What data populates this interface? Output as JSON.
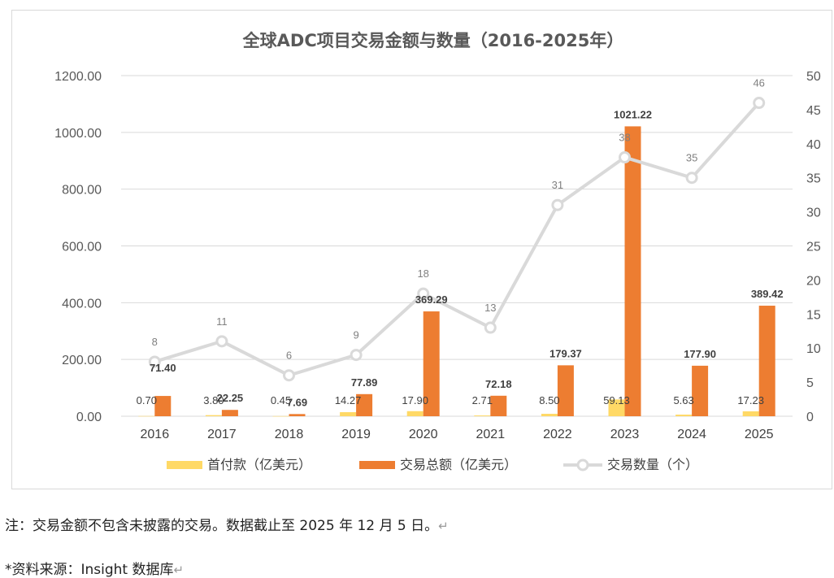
{
  "chart_data": {
    "type": "bar",
    "title": "全球ADC项目交易金额与数量（2016-2025年）",
    "categories": [
      "2016",
      "2017",
      "2018",
      "2019",
      "2020",
      "2021",
      "2022",
      "2023",
      "2024",
      "2025"
    ],
    "y_left": {
      "ticks": [
        "0.00",
        "200.00",
        "400.00",
        "600.00",
        "800.00",
        "1000.00",
        "1200.00"
      ],
      "min": 0,
      "max": 1200
    },
    "y_right": {
      "ticks": [
        "0",
        "5",
        "10",
        "15",
        "20",
        "25",
        "30",
        "35",
        "40",
        "45",
        "50"
      ],
      "min": 0,
      "max": 50
    },
    "grid": true,
    "legend_position": "bottom",
    "series": [
      {
        "name": "首付款（亿美元）",
        "type": "bar",
        "axis": "left",
        "color": "#FFD966",
        "values": [
          0.7,
          3.8,
          0.45,
          14.27,
          17.9,
          2.71,
          8.5,
          59.13,
          5.63,
          17.23
        ],
        "labels": [
          "0.70",
          "3.80",
          "0.45",
          "14.27",
          "17.90",
          "2.71",
          "8.50",
          "59.13",
          "5.63",
          "17.23"
        ]
      },
      {
        "name": "交易总额（亿美元）",
        "type": "bar",
        "axis": "left",
        "color": "#ED7D31",
        "values": [
          71.4,
          22.25,
          7.69,
          77.89,
          369.29,
          72.18,
          179.37,
          1021.22,
          177.9,
          389.42
        ],
        "labels": [
          "71.40",
          "22.25",
          "7.69",
          "77.89",
          "369.29",
          "72.18",
          "179.37",
          "1021.22",
          "177.90",
          "389.42"
        ]
      },
      {
        "name": "交易数量（个）",
        "type": "line",
        "axis": "right",
        "color": "#D9D9D9",
        "values": [
          8,
          11,
          6,
          9,
          18,
          13,
          31,
          38,
          35,
          46
        ],
        "labels": [
          "8",
          "11",
          "6",
          "9",
          "18",
          "13",
          "31",
          "38",
          "35",
          "46"
        ]
      }
    ]
  },
  "notes": {
    "note1": "注：交易金额不包含未披露的交易。数据截止至 2025 年 12 月 5 日。",
    "note2": "*资料来源：Insight 数据库",
    "return_mark": "↵"
  }
}
